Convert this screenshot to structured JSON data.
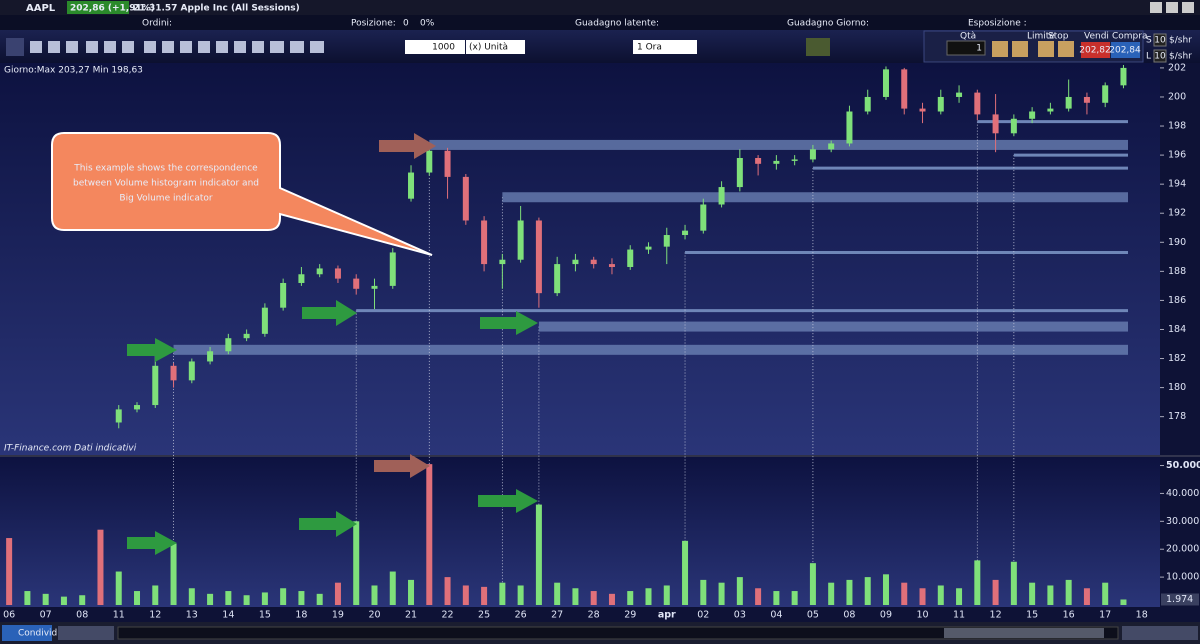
{
  "header": {
    "symbol": "AAPL",
    "quote": "202,86 (+1,91%)",
    "info": "21.31.57 Apple Inc (All Sessions)"
  },
  "summary": {
    "orders": "Ordini:",
    "position": "Posizione:",
    "position_qty": "0",
    "position_pct": "0%",
    "latent": "Guadagno latente:",
    "day": "Guadagno Giorno:",
    "exposure": "Esposizione :"
  },
  "toolbar": {
    "quantity": "1000",
    "unit": "(x) Unità",
    "timeframe": "1 Ora"
  },
  "order_panel": {
    "qty_label": "Qtà",
    "qty": "1",
    "limit": "Limite",
    "stop": "Stop",
    "sell": "Vendi",
    "buy": "Compra",
    "sell_price": "202,82",
    "buy_price": "202,84",
    "s": "S",
    "l": "L",
    "size_s": "10",
    "size_l": "10",
    "unit_s": "$/shr",
    "unit_l": "$/shr"
  },
  "chart_info": "Giorno:Max 203,27 Min 198,63",
  "source": "IT-Finance.com Dati indicativi",
  "callout": [
    "This example shows the correspondence",
    "between Volume histogram indicator and",
    "Big Volume indicator"
  ],
  "footer": {
    "share": "Condividi"
  },
  "chart_data": [
    {
      "type": "candlestick",
      "up_color": "#7fe07a",
      "down_color": "#e0707a",
      "xlim": [
        -0.5,
        63
      ],
      "ylim": [
        175.5,
        202.2
      ],
      "yticks": [
        178,
        180,
        182,
        184,
        186,
        188,
        190,
        192,
        194,
        196,
        198,
        200,
        202
      ],
      "candles": [
        null,
        null,
        null,
        null,
        null,
        null,
        [
          177.6,
          178.8,
          177.2,
          178.5
        ],
        [
          178.5,
          179,
          178.3,
          178.8
        ],
        [
          178.8,
          182.5,
          178.6,
          181.5
        ],
        [
          181.5,
          181.7,
          180,
          180.5
        ],
        [
          180.5,
          182,
          180.3,
          181.8
        ],
        [
          181.8,
          182.8,
          181.6,
          182.5
        ],
        [
          182.5,
          183.7,
          182.3,
          183.4
        ],
        [
          183.4,
          184,
          183.2,
          183.7
        ],
        [
          183.7,
          185.8,
          183.5,
          185.5
        ],
        [
          185.5,
          187.5,
          185.3,
          187.2
        ],
        [
          187.2,
          188.3,
          187,
          187.8
        ],
        [
          187.8,
          188.5,
          187.6,
          188.2
        ],
        [
          188.2,
          188.4,
          187.2,
          187.5
        ],
        [
          187.5,
          187.8,
          186.4,
          186.8
        ],
        [
          186.8,
          187.5,
          185.4,
          187
        ],
        [
          187,
          189.6,
          186.8,
          189.3
        ],
        [
          193,
          195.3,
          192.8,
          194.8
        ],
        [
          194.8,
          196.6,
          194.6,
          196.3
        ],
        [
          196.3,
          196.5,
          193,
          194.5
        ],
        [
          194.5,
          194.7,
          191.2,
          191.5
        ],
        [
          191.5,
          191.8,
          188,
          188.5
        ],
        [
          188.5,
          189.2,
          186.8,
          188.8
        ],
        [
          188.8,
          192.5,
          188.6,
          191.5
        ],
        [
          191.5,
          191.7,
          185.5,
          186.5
        ],
        [
          186.5,
          189,
          186.3,
          188.5
        ],
        [
          188.5,
          189.2,
          188,
          188.8
        ],
        [
          188.8,
          189,
          188.2,
          188.5
        ],
        [
          188.5,
          188.9,
          187.8,
          188.3
        ],
        [
          188.3,
          189.8,
          188.1,
          189.5
        ],
        [
          189.5,
          190,
          189.2,
          189.7
        ],
        [
          189.7,
          191,
          188.5,
          190.5
        ],
        [
          190.5,
          191.2,
          190.2,
          190.8
        ],
        [
          190.8,
          193,
          190.6,
          192.6
        ],
        [
          192.6,
          194.2,
          192.4,
          193.8
        ],
        [
          193.8,
          196.4,
          193.5,
          195.8
        ],
        [
          195.8,
          196,
          194.6,
          195.4
        ],
        [
          195.4,
          196,
          195,
          195.6
        ],
        [
          195.6,
          196,
          195.3,
          195.7
        ],
        [
          195.7,
          196.7,
          195.5,
          196.4
        ],
        [
          196.4,
          197,
          196.2,
          196.8
        ],
        [
          196.8,
          199.4,
          196.6,
          199
        ],
        [
          199,
          200.5,
          198.8,
          200
        ],
        [
          200,
          202.1,
          199.8,
          201.9
        ],
        [
          201.9,
          202,
          198.8,
          199.2
        ],
        [
          199.2,
          199.6,
          198.2,
          199
        ],
        [
          199,
          200.5,
          198.8,
          200
        ],
        [
          200,
          200.8,
          199.6,
          200.3
        ],
        [
          200.3,
          200.5,
          198.4,
          198.8
        ],
        [
          198.8,
          200.2,
          196.2,
          197.5
        ],
        [
          197.5,
          198.8,
          197.3,
          198.5
        ],
        [
          198.5,
          199.3,
          198.2,
          199
        ],
        [
          199,
          199.6,
          198.8,
          199.2
        ],
        [
          199.2,
          201.2,
          199,
          200
        ],
        [
          200,
          200.3,
          198.8,
          199.6
        ],
        [
          199.6,
          201,
          199.3,
          200.8
        ],
        [
          200.8,
          202.2,
          200.6,
          202
        ]
      ],
      "level_color": "#6f86b8",
      "levels": [
        {
          "start": 9,
          "value": 182.6,
          "band": true
        },
        {
          "start": 19,
          "value": 185.3,
          "band": false
        },
        {
          "start": 29,
          "value": 184.2,
          "band": true
        },
        {
          "start": 23,
          "value": 196.7,
          "band": true
        },
        {
          "start": 27,
          "value": 193.1,
          "band": true
        },
        {
          "start": 37,
          "value": 189.3,
          "band": false
        },
        {
          "start": 44,
          "value": 195.1,
          "band": false
        },
        {
          "start": 55,
          "value": 196.0,
          "band": false
        },
        {
          "start": 53,
          "value": 198.3,
          "band": false
        }
      ]
    },
    {
      "type": "bar",
      "up_color": "#7fe07a",
      "down_color": "#e0707a",
      "xlim": [
        -0.5,
        63
      ],
      "ylim": [
        0,
        52700
      ],
      "yticks": [
        {
          "value": 10000,
          "label": "10.000"
        },
        {
          "value": 20000,
          "label": "20.000"
        },
        {
          "value": 30000,
          "label": "30.000"
        },
        {
          "value": 40000,
          "label": "40.000"
        },
        {
          "value": 50000,
          "label": "50.000"
        }
      ],
      "xticks": [
        {
          "value": 0,
          "label": "06"
        },
        {
          "value": 2,
          "label": "07"
        },
        {
          "value": 4,
          "label": "08"
        },
        {
          "value": 6,
          "label": "11"
        },
        {
          "value": 8,
          "label": "12"
        },
        {
          "value": 10,
          "label": "13"
        },
        {
          "value": 12,
          "label": "14"
        },
        {
          "value": 14,
          "label": "15"
        },
        {
          "value": 16,
          "label": "18"
        },
        {
          "value": 18,
          "label": "19"
        },
        {
          "value": 20,
          "label": "20"
        },
        {
          "value": 22,
          "label": "21"
        },
        {
          "value": 24,
          "label": "22"
        },
        {
          "value": 26,
          "label": "25"
        },
        {
          "value": 28,
          "label": "26"
        },
        {
          "value": 30,
          "label": "27"
        },
        {
          "value": 32,
          "label": "28"
        },
        {
          "value": 34,
          "label": "29"
        },
        {
          "value": 36,
          "label": "apr"
        },
        {
          "value": 38,
          "label": "02"
        },
        {
          "value": 40,
          "label": "03"
        },
        {
          "value": 42,
          "label": "04"
        },
        {
          "value": 44,
          "label": "05"
        },
        {
          "value": 46,
          "label": "08"
        },
        {
          "value": 48,
          "label": "09"
        },
        {
          "value": 50,
          "label": "10"
        },
        {
          "value": 52,
          "label": "11"
        },
        {
          "value": 54,
          "label": "12"
        },
        {
          "value": 56,
          "label": "15"
        },
        {
          "value": 58,
          "label": "16"
        },
        {
          "value": 60,
          "label": "17"
        },
        {
          "value": 62,
          "label": "18"
        }
      ],
      "values": [
        24000,
        5000,
        4000,
        3000,
        3500,
        27000,
        12000,
        5000,
        7000,
        22000,
        6000,
        4000,
        5000,
        3500,
        4500,
        6000,
        5000,
        4000,
        8000,
        30000,
        7000,
        12000,
        9000,
        50500,
        10000,
        7000,
        6500,
        8000,
        7000,
        36000,
        8000,
        6000,
        5000,
        4000,
        5000,
        6000,
        7000,
        23000,
        9000,
        8000,
        10000,
        6000,
        5000,
        5000,
        15000,
        8000,
        9000,
        10000,
        11000,
        8000,
        6000,
        7000,
        6000,
        16000,
        9000,
        15500,
        8000,
        7000,
        9000,
        6000,
        8000,
        1974
      ],
      "down": [
        0,
        5,
        18,
        23,
        24,
        25,
        26,
        32,
        33,
        41,
        49,
        50,
        54,
        59
      ],
      "last_label": "1.974"
    }
  ]
}
